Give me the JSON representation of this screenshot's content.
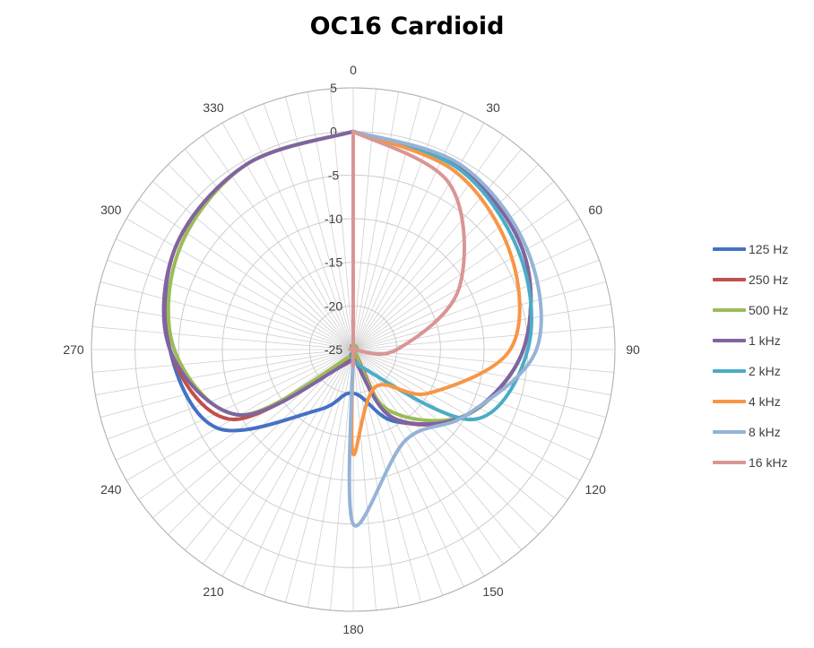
{
  "chart_data": {
    "type": "radar",
    "title": "OC16 Cardioid",
    "angle_ticks": [
      "0",
      "30",
      "60",
      "90",
      "120",
      "150",
      "180",
      "210",
      "240",
      "270",
      "300",
      "330"
    ],
    "angle_step_deg": 5,
    "radial_ticks": [
      "5",
      "0",
      "-5",
      "-10",
      "-15",
      "-20",
      "-25"
    ],
    "rlim": [
      -25,
      5
    ],
    "angles": [
      0,
      30,
      60,
      90,
      120,
      150,
      180,
      210,
      240,
      270,
      300,
      330
    ],
    "legend_position": "right",
    "series": [
      {
        "name": "125 Hz",
        "color": "#4472C4",
        "values": [
          0,
          -0.8,
          -2.5,
          -5.5,
          -10,
          -15.5,
          -20,
          -17,
          -7,
          -4,
          -1.5,
          -0.5
        ]
      },
      {
        "name": "250 Hz",
        "color": "#C0504D",
        "values": [
          0,
          -0.8,
          -2.5,
          -5.5,
          -10,
          -16,
          -25,
          -23.5,
          -9,
          -4,
          -1.5,
          -0.5
        ]
      },
      {
        "name": "500 Hz",
        "color": "#9BBB59",
        "values": [
          0,
          -0.8,
          -2.5,
          -5.5,
          -10,
          -17,
          -25,
          -24,
          -10,
          -4.5,
          -2,
          -0.5
        ]
      },
      {
        "name": "1 kHz",
        "color": "#8064A2",
        "values": [
          0,
          -0.8,
          -2.5,
          -5.5,
          -10,
          -16,
          -24,
          -23,
          -10,
          -4,
          -1.5,
          -0.5
        ]
      },
      {
        "name": "2 kHz",
        "color": "#4BACC6",
        "values": [
          0,
          -1,
          -3,
          -5,
          -9,
          -22.5,
          -25,
          -25,
          -25,
          -25,
          -25,
          -25
        ]
      },
      {
        "name": "4 kHz",
        "color": "#F79646",
        "values": [
          0,
          -1.5,
          -4,
          -7,
          -15,
          -20,
          -13,
          -25,
          -25,
          -25,
          -25,
          -25
        ]
      },
      {
        "name": "8 kHz",
        "color": "#95B3D7",
        "values": [
          0,
          -0.5,
          -2,
          -4,
          -10,
          -13,
          -5,
          -25,
          -25,
          -25,
          -25,
          -25
        ]
      },
      {
        "name": "16 kHz",
        "color": "#D99694",
        "values": [
          0,
          -3,
          -11,
          -20,
          -25,
          -25,
          -25,
          -25,
          -25,
          -25,
          -25,
          -25
        ]
      }
    ]
  }
}
